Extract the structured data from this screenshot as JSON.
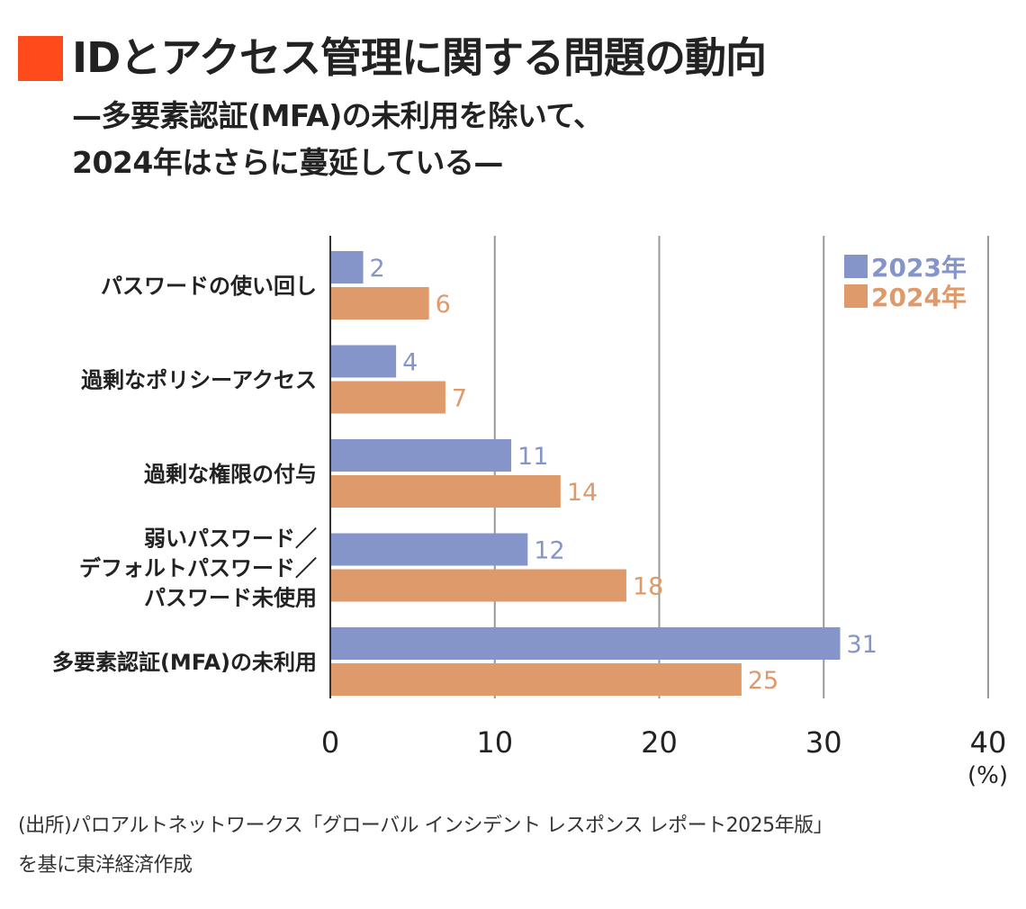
{
  "header": {
    "title": "IDとアクセス管理に関する問題の動向",
    "subtitle_line1": "—多要素認証(MFA)の未利用を除いて、",
    "subtitle_line2": "2024年はさらに蔓延している—"
  },
  "colors": {
    "title_mark": "#ff4a1c",
    "series_2023": "#8595c9",
    "series_2024": "#de9a6a",
    "grid": "#999999",
    "axis": "#333333"
  },
  "chart_data": {
    "type": "bar",
    "orientation": "horizontal",
    "categories": [
      [
        "パスワードの使い回し"
      ],
      [
        "過剰なポリシーアクセス"
      ],
      [
        "過剰な権限の付与"
      ],
      [
        "弱いパスワード／",
        "デフォルトパスワード／",
        "パスワード未使用"
      ],
      [
        "多要素認証(MFA)の未利用"
      ]
    ],
    "series": [
      {
        "name": "2023年",
        "values": [
          2,
          4,
          11,
          12,
          31
        ]
      },
      {
        "name": "2024年",
        "values": [
          6,
          7,
          14,
          18,
          25
        ]
      }
    ],
    "xlim": [
      0,
      40
    ],
    "xticks": [
      0,
      10,
      20,
      30,
      40
    ],
    "xunit": "(%)",
    "grid": true,
    "legend_position": "top-right"
  },
  "footer": {
    "source_line1": "(出所)パロアルトネットワークス「グローバル インシデント レスポンス レポート2025年版」",
    "source_line2": "を基に東洋経済作成"
  }
}
